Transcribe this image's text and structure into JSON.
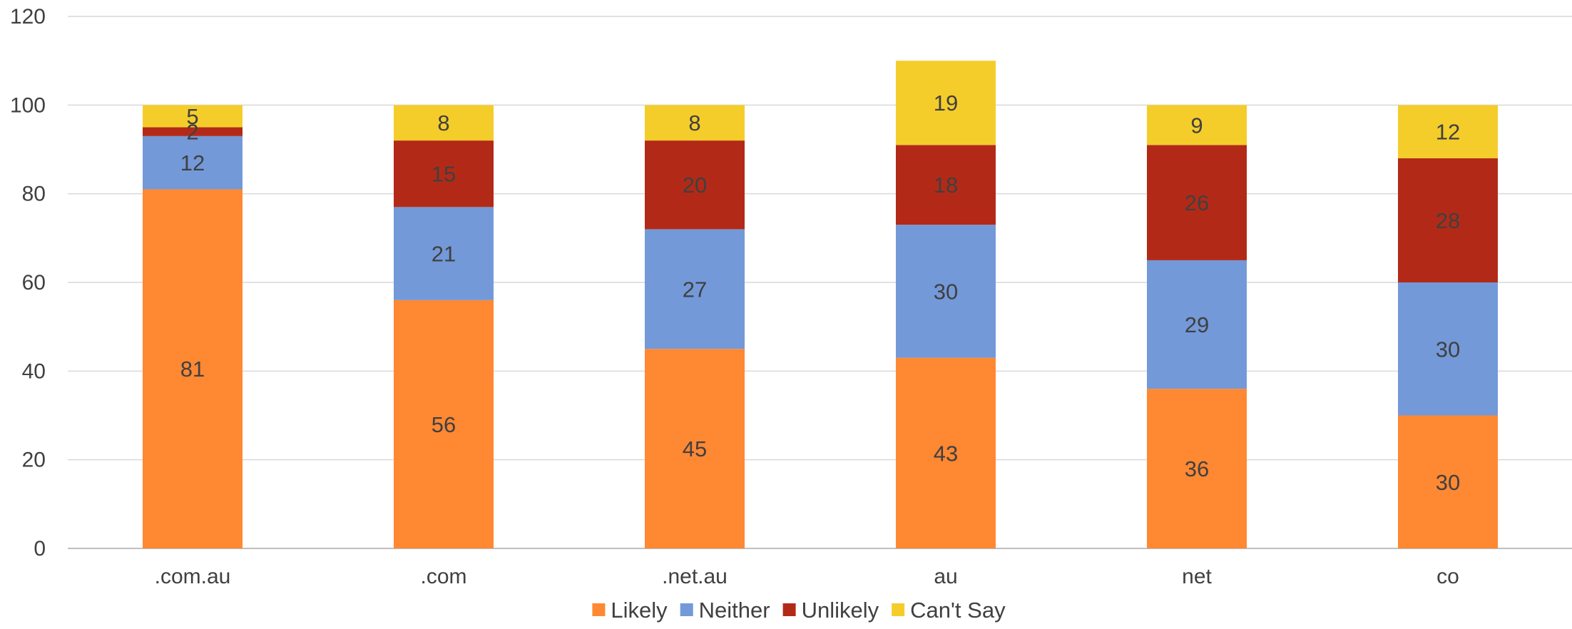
{
  "chart_data": {
    "type": "bar",
    "stacked": true,
    "categories": [
      ".com.au",
      ".com",
      ".net.au",
      "au",
      "net",
      "co"
    ],
    "series": [
      {
        "name": "Likely",
        "color": "#ff8833",
        "values": [
          81,
          56,
          45,
          43,
          36,
          30
        ]
      },
      {
        "name": "Neither",
        "color": "#7399d9",
        "values": [
          12,
          21,
          27,
          30,
          29,
          30
        ]
      },
      {
        "name": "Unlikely",
        "color": "#b22a17",
        "values": [
          2,
          15,
          20,
          18,
          26,
          28
        ]
      },
      {
        "name": "Can't Say",
        "color": "#f5cd2a",
        "values": [
          5,
          8,
          8,
          19,
          9,
          12
        ]
      }
    ],
    "ylim": [
      0,
      120
    ],
    "yticks": [
      0,
      20,
      40,
      60,
      80,
      100,
      120
    ],
    "grid": true,
    "legend": "bottom-center",
    "title": "",
    "xlabel": "",
    "ylabel": ""
  }
}
